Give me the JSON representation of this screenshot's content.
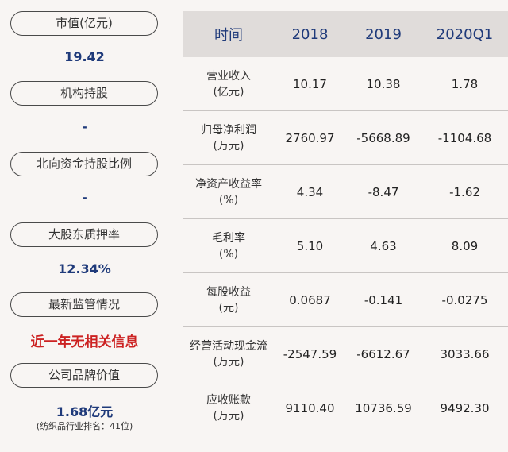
{
  "left": {
    "market_cap": {
      "label": "市值(亿元)",
      "value": "19.42"
    },
    "institution": {
      "label": "机构持股",
      "value": "-"
    },
    "northbound": {
      "label": "北向资金持股比例",
      "value": "-"
    },
    "pledge": {
      "label": "大股东质押率",
      "value": "12.34%"
    },
    "supervision": {
      "label": "最新监管情况",
      "value": "近一年无相关信息"
    },
    "brand": {
      "label": "公司品牌价值",
      "value": "1.68亿元",
      "note": "(纺织品行业排名：41位)"
    }
  },
  "table": {
    "headers": [
      "时间",
      "2018",
      "2019",
      "2020Q1"
    ],
    "rows": [
      {
        "label1": "营业收入",
        "label2": "(亿元)",
        "values": [
          "10.17",
          "10.38",
          "1.78"
        ]
      },
      {
        "label1": "归母净利润",
        "label2": "(万元)",
        "values": [
          "2760.97",
          "-5668.89",
          "-1104.68"
        ]
      },
      {
        "label1": "净资产收益率",
        "label2": "(%)",
        "values": [
          "4.34",
          "-8.47",
          "-1.62"
        ]
      },
      {
        "label1": "毛利率",
        "label2": "(%)",
        "values": [
          "5.10",
          "4.63",
          "8.09"
        ]
      },
      {
        "label1": "每股收益",
        "label2": "(元)",
        "values": [
          "0.0687",
          "-0.141",
          "-0.0275"
        ]
      },
      {
        "label1": "经营活动现金流",
        "label2": "(万元)",
        "values": [
          "-2547.59",
          "-6612.67",
          "3033.66"
        ]
      },
      {
        "label1": "应收账款",
        "label2": "(万元)",
        "values": [
          "9110.40",
          "10736.59",
          "9492.30"
        ]
      }
    ]
  }
}
